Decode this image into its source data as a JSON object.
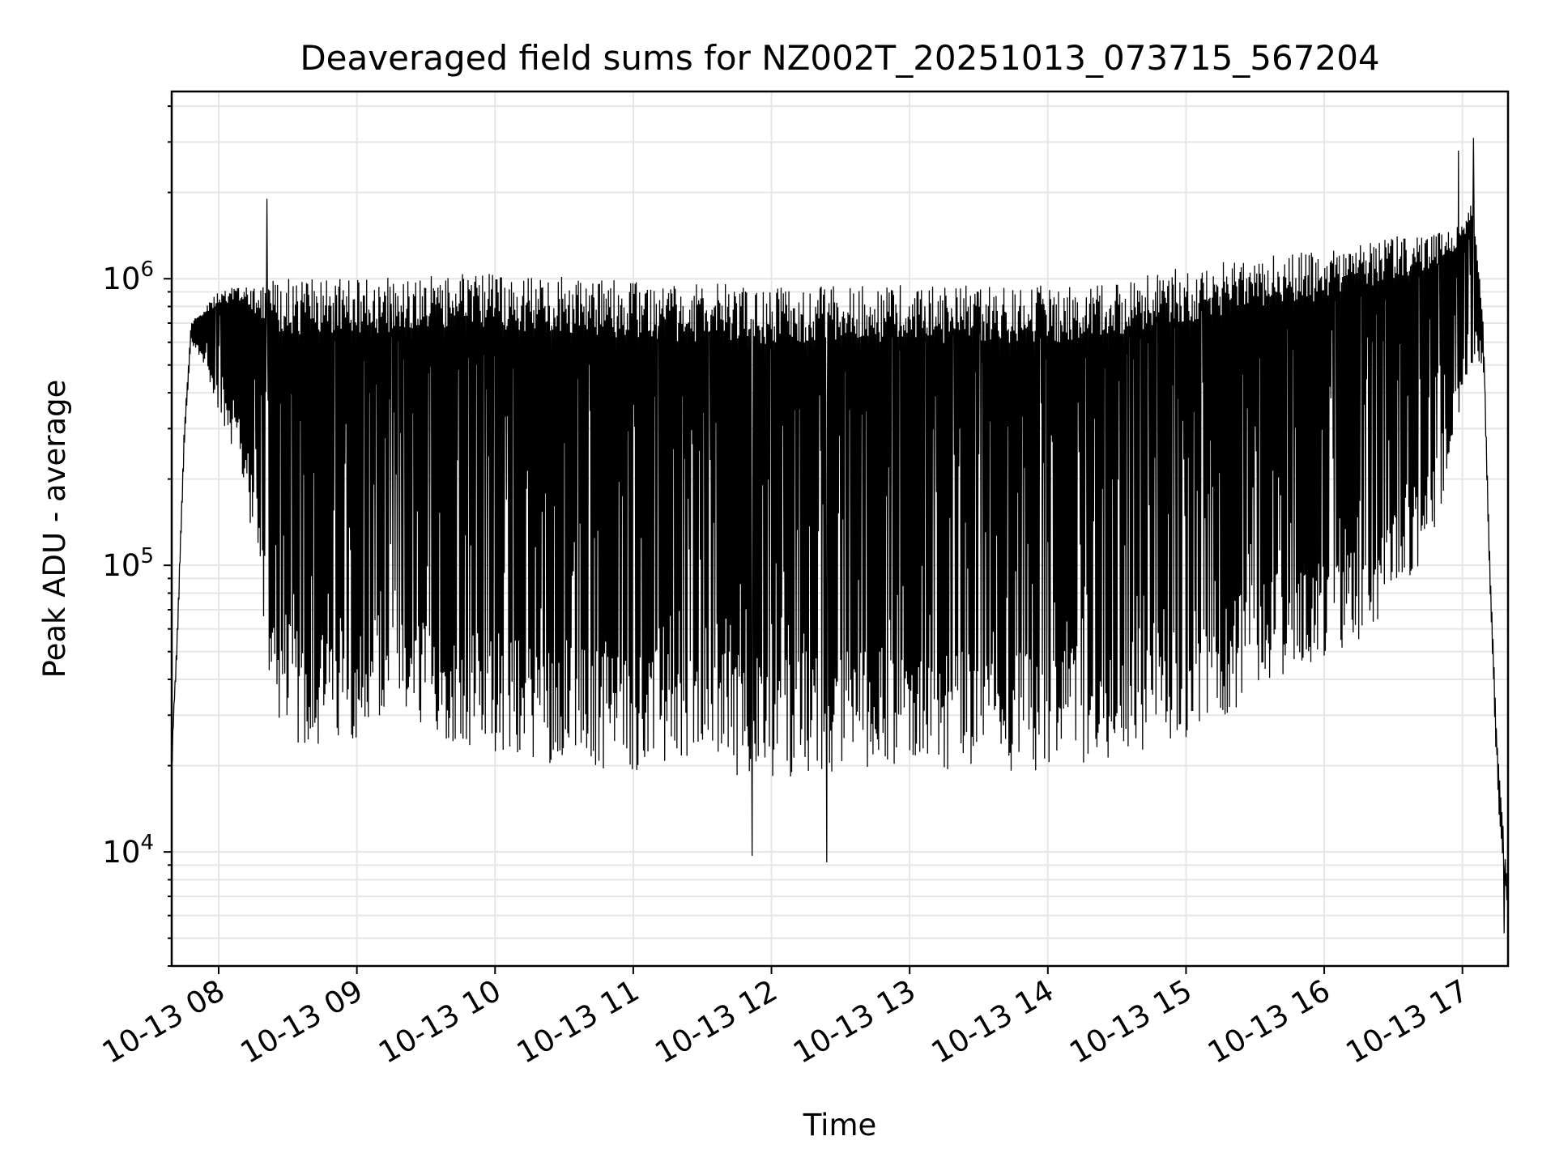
{
  "chart_data": {
    "type": "line",
    "title": "Deaveraged field sums for NZ002T_20251013_073715_567204",
    "xlabel": "Time",
    "ylabel": "Peak ADU - average",
    "yscale": "log",
    "ylim": [
      4000,
      4500000
    ],
    "xlim_hours": [
      7.66,
      17.33
    ],
    "grid": true,
    "legend": "none",
    "x_ticks": [
      {
        "label": "10-13 08",
        "hour": 8
      },
      {
        "label": "10-13 09",
        "hour": 9
      },
      {
        "label": "10-13 10",
        "hour": 10
      },
      {
        "label": "10-13 11",
        "hour": 11
      },
      {
        "label": "10-13 12",
        "hour": 12
      },
      {
        "label": "10-13 13",
        "hour": 13
      },
      {
        "label": "10-13 14",
        "hour": 14
      },
      {
        "label": "10-13 15",
        "hour": 15
      },
      {
        "label": "10-13 16",
        "hour": 16
      },
      {
        "label": "10-13 17",
        "hour": 17
      }
    ],
    "y_ticks": [
      {
        "base": "10",
        "exp": "4",
        "value": 10000
      },
      {
        "base": "10",
        "exp": "5",
        "value": 100000
      },
      {
        "base": "10",
        "exp": "6",
        "value": 1000000
      }
    ],
    "series": [
      {
        "name": "deaveraged field sum",
        "color": "#000000",
        "upper_envelope": [
          [
            7.66,
            22000
          ],
          [
            7.7,
            60000
          ],
          [
            7.75,
            300000
          ],
          [
            7.8,
            700000
          ],
          [
            7.9,
            800000
          ],
          [
            8.0,
            900000
          ],
          [
            8.2,
            1000000
          ],
          [
            8.4,
            1000000
          ],
          [
            9.0,
            1000000
          ],
          [
            10.0,
            1050000
          ],
          [
            11.0,
            980000
          ],
          [
            12.0,
            950000
          ],
          [
            13.0,
            950000
          ],
          [
            14.0,
            950000
          ],
          [
            14.5,
            1000000
          ],
          [
            15.0,
            1100000
          ],
          [
            15.5,
            1200000
          ],
          [
            16.0,
            1250000
          ],
          [
            16.5,
            1400000
          ],
          [
            16.9,
            1500000
          ],
          [
            17.0,
            1600000
          ],
          [
            17.08,
            1900000
          ],
          [
            17.15,
            700000
          ],
          [
            17.2,
            100000
          ],
          [
            17.25,
            25000
          ],
          [
            17.33,
            7000
          ]
        ],
        "lower_envelope": [
          [
            7.66,
            18000
          ],
          [
            7.7,
            50000
          ],
          [
            7.75,
            250000
          ],
          [
            7.8,
            600000
          ],
          [
            7.9,
            500000
          ],
          [
            8.0,
            300000
          ],
          [
            8.1,
            250000
          ],
          [
            8.2,
            180000
          ],
          [
            8.3,
            70000
          ],
          [
            8.4,
            30000
          ],
          [
            8.6,
            22000
          ],
          [
            9.0,
            25000
          ],
          [
            9.5,
            25000
          ],
          [
            10.0,
            22000
          ],
          [
            10.5,
            20000
          ],
          [
            11.0,
            19000
          ],
          [
            11.5,
            19000
          ],
          [
            12.0,
            18000
          ],
          [
            12.5,
            19000
          ],
          [
            13.0,
            20000
          ],
          [
            13.5,
            19000
          ],
          [
            14.0,
            19000
          ],
          [
            14.5,
            21000
          ],
          [
            15.0,
            25000
          ],
          [
            15.3,
            30000
          ],
          [
            15.6,
            40000
          ],
          [
            16.0,
            45000
          ],
          [
            16.3,
            55000
          ],
          [
            16.6,
            80000
          ],
          [
            16.8,
            120000
          ],
          [
            16.95,
            300000
          ],
          [
            17.05,
            500000
          ],
          [
            17.15,
            500000
          ],
          [
            17.2,
            80000
          ],
          [
            17.25,
            16000
          ],
          [
            17.33,
            6000
          ]
        ],
        "spikes": [
          {
            "hour": 8.35,
            "value": 1900000
          },
          {
            "hour": 11.86,
            "value": 9700
          },
          {
            "hour": 12.4,
            "value": 9200
          },
          {
            "hour": 16.97,
            "value": 2800000
          },
          {
            "hour": 17.08,
            "value": 3100000
          },
          {
            "hour": 17.3,
            "value": 5200
          }
        ]
      }
    ]
  }
}
